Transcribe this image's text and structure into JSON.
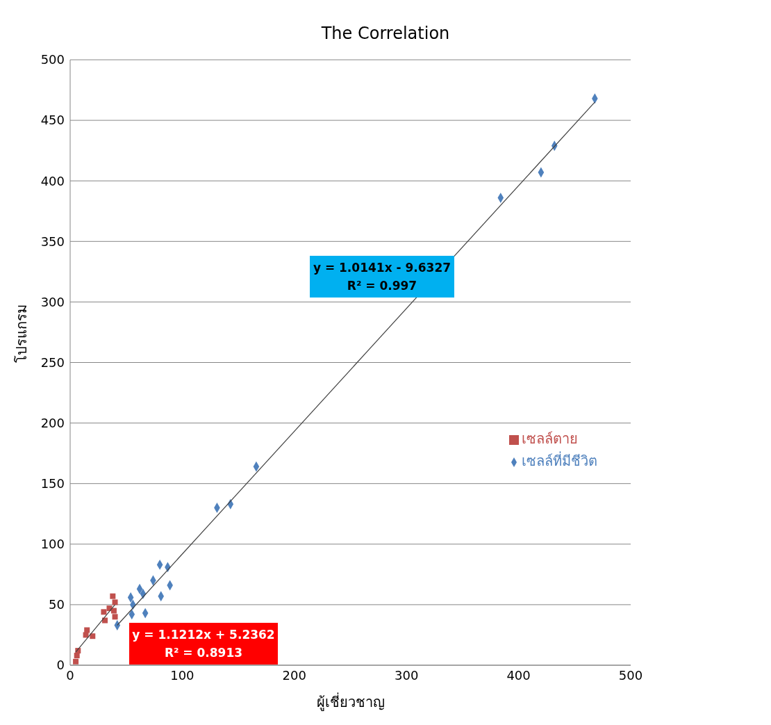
{
  "chart_data": {
    "type": "scatter",
    "title": "The Correlation",
    "xlabel": "ผู้เชี่ยวชาญ",
    "ylabel": "โปรแกรม",
    "xlim": [
      0,
      500
    ],
    "xticks": [
      0,
      100,
      200,
      300,
      400,
      500
    ],
    "ylim": [
      0,
      500
    ],
    "yticks": [
      0,
      50,
      100,
      150,
      200,
      250,
      300,
      350,
      400,
      450,
      500
    ],
    "grid": "y",
    "legend": "right",
    "series": [
      {
        "name": "เซลล์ที่มีชีวิต",
        "color": "#4f81bd",
        "marker": "diamond",
        "x": [
          468,
          432,
          420,
          384,
          166,
          131,
          143,
          80,
          87,
          74,
          89,
          81,
          62,
          65,
          54,
          56,
          67,
          55,
          42
        ],
        "values": [
          468,
          429,
          407,
          386,
          164,
          130,
          133,
          83,
          81,
          70,
          66,
          57,
          63,
          59,
          56,
          50,
          43,
          42,
          33
        ]
      },
      {
        "name": "เซลล์ตาย",
        "color": "#c0504d",
        "marker": "square",
        "x": [
          6,
          7,
          5,
          15,
          14,
          20,
          30,
          31,
          38,
          40,
          39,
          40,
          35
        ],
        "values": [
          8,
          12,
          3,
          29,
          25,
          24,
          44,
          37,
          57,
          52,
          45,
          40,
          47
        ]
      },
      {
        "type": "line",
        "color": "#404040",
        "x": [
          42,
          468
        ],
        "values": [
          33,
          465
        ]
      },
      {
        "type": "line",
        "color": "#404040",
        "x": [
          5,
          40
        ],
        "values": [
          10.8,
          50
        ]
      }
    ],
    "annotations": [
      "y = 1.0141x - 9.6327\nR² = 0.997",
      "y = 1.1212x + 5.2362\nR² = 0.8913"
    ]
  }
}
